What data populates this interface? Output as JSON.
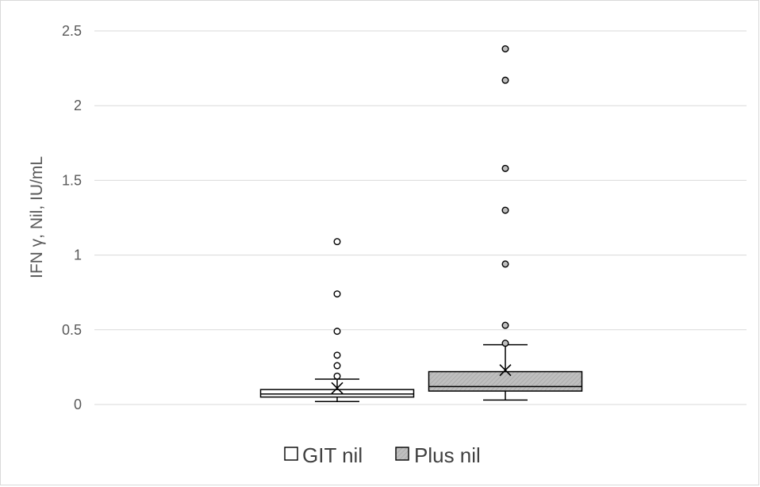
{
  "chart_data": {
    "type": "box",
    "ylabel": "IFN γ, Nil, IU/mL",
    "ylim": [
      0,
      2.5
    ],
    "yticks": [
      0,
      0.5,
      1,
      1.5,
      2,
      2.5
    ],
    "ytick_labels": [
      "0",
      "0.5",
      "1",
      "1.5",
      "2",
      "2.5"
    ],
    "grid": true,
    "legend_position": "bottom",
    "series": [
      {
        "name": "GIT nil",
        "color": "#ffffff",
        "pattern": "none",
        "whisker_low": 0.02,
        "q1": 0.05,
        "median": 0.07,
        "q3": 0.1,
        "whisker_high": 0.17,
        "mean": 0.11,
        "outliers": [
          0.19,
          0.26,
          0.33,
          0.49,
          0.74,
          1.09
        ]
      },
      {
        "name": "Plus nil",
        "color": "#bfbfbf",
        "pattern": "hatched",
        "whisker_low": 0.03,
        "q1": 0.09,
        "median": 0.12,
        "q3": 0.22,
        "whisker_high": 0.4,
        "mean": 0.23,
        "outliers": [
          0.41,
          0.53,
          0.94,
          1.3,
          1.58,
          2.17,
          2.38
        ]
      }
    ]
  }
}
